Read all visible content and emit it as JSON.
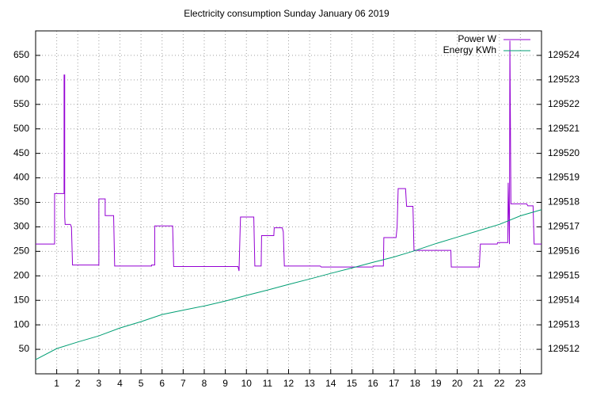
{
  "chart_data": {
    "type": "line",
    "title": "Electricity consumption Sunday January 06 2019",
    "xlim": [
      0,
      24
    ],
    "xticks": [
      1,
      2,
      3,
      4,
      5,
      6,
      7,
      8,
      9,
      10,
      11,
      12,
      13,
      14,
      15,
      16,
      17,
      18,
      19,
      20,
      21,
      22,
      23
    ],
    "ylim": [
      0,
      700
    ],
    "yticks": [
      50,
      100,
      150,
      200,
      250,
      300,
      350,
      400,
      450,
      500,
      550,
      600,
      650
    ],
    "y2lim": [
      129511,
      129525
    ],
    "y2ticks": [
      129512,
      129513,
      129514,
      129515,
      129516,
      129517,
      129518,
      129519,
      129520,
      129521,
      129522,
      129523,
      129524
    ],
    "grid": true,
    "legend": "top-right",
    "series": [
      {
        "name": "Power W",
        "color": "#9400d3",
        "x": [
          0,
          0.9,
          0.9,
          1.35,
          1.35,
          1.38,
          1.38,
          1.4,
          1.65,
          1.7,
          1.75,
          3.0,
          3.0,
          3.3,
          3.3,
          3.7,
          3.75,
          5.5,
          5.5,
          5.65,
          5.65,
          6.5,
          6.55,
          9.6,
          9.65,
          9.7,
          9.72,
          10.35,
          10.4,
          10.7,
          10.72,
          11.3,
          11.32,
          11.7,
          11.75,
          11.8,
          13.5,
          13.55,
          16.0,
          16.05,
          16.5,
          16.52,
          17.1,
          17.15,
          17.2,
          17.55,
          17.6,
          17.9,
          17.92,
          17.95,
          19.7,
          19.72,
          21.05,
          21.1,
          21.9,
          21.92,
          22.4,
          22.42,
          22.48,
          22.5,
          22.55,
          23.3,
          23.35,
          23.6,
          23.65,
          24
        ],
        "values": [
          265,
          265,
          368,
          368,
          610,
          610,
          320,
          305,
          305,
          300,
          222,
          222,
          357,
          357,
          323,
          323,
          220,
          220,
          222,
          222,
          302,
          302,
          219,
          219,
          210,
          290,
          320,
          320,
          220,
          220,
          282,
          282,
          298,
          298,
          290,
          220,
          220,
          218,
          218,
          220,
          220,
          278,
          278,
          300,
          378,
          378,
          342,
          342,
          310,
          252,
          252,
          218,
          218,
          265,
          265,
          268,
          268,
          390,
          265,
          680,
          347,
          347,
          343,
          343,
          265,
          265
        ]
      },
      {
        "name": "Energy KWh",
        "color": "#009e73",
        "axis": "y2",
        "x": [
          0,
          1,
          2,
          3,
          4,
          5,
          6,
          7,
          8,
          9,
          10,
          11,
          12,
          13,
          14,
          15,
          16,
          17,
          18,
          19,
          20,
          21,
          22,
          23,
          24
        ],
        "values": [
          129511.58,
          129512.03,
          129512.3,
          129512.55,
          129512.87,
          129513.13,
          129513.42,
          129513.6,
          129513.77,
          129513.97,
          129514.2,
          129514.42,
          129514.65,
          129514.87,
          129515.1,
          129515.32,
          129515.55,
          129515.77,
          129516.03,
          129516.32,
          129516.58,
          129516.84,
          129517.1,
          129517.45,
          129517.7
        ]
      }
    ]
  }
}
